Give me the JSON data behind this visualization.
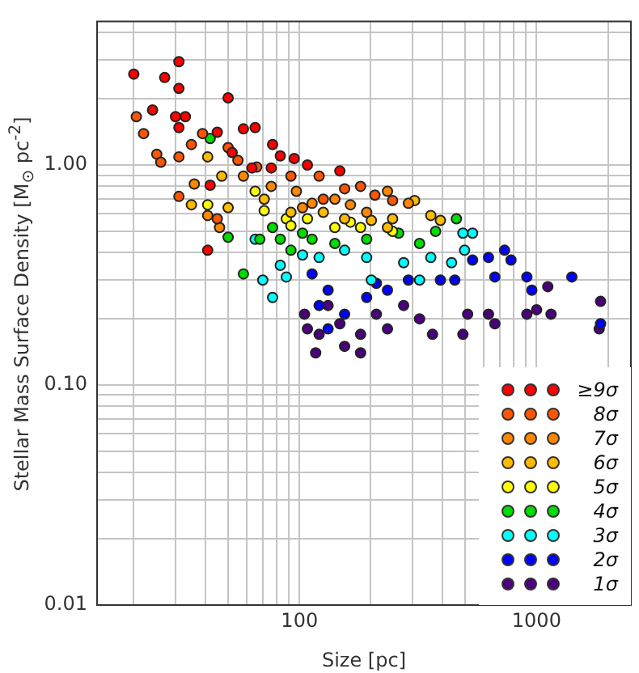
{
  "chart_data": {
    "type": "scatter",
    "xlabel": "Size [pc]",
    "ylabel": "Stellar Mass Surface Density [M$_{⊙}$ pc$^{-2}$]",
    "log": "xy",
    "grid": true,
    "legend": "bottom right",
    "marker": "circle",
    "xlim": [
      14,
      2500
    ],
    "ylim": [
      0.01,
      4.5
    ],
    "xticks": [
      {
        "value": 20,
        "label": null
      },
      {
        "value": 30,
        "label": null
      },
      {
        "value": 40,
        "label": null
      },
      {
        "value": 50,
        "label": null
      },
      {
        "value": 60,
        "label": null
      },
      {
        "value": 70,
        "label": null
      },
      {
        "value": 80,
        "label": null
      },
      {
        "value": 90,
        "label": null
      },
      100,
      {
        "value": 200,
        "label": null
      },
      {
        "value": 300,
        "label": null
      },
      {
        "value": 400,
        "label": null
      },
      {
        "value": 500,
        "label": null
      },
      {
        "value": 600,
        "label": null
      },
      {
        "value": 700,
        "label": null
      },
      {
        "value": 800,
        "label": null
      },
      {
        "value": 900,
        "label": null
      },
      1000,
      {
        "value": 2000,
        "label": null
      }
    ],
    "yticks": [
      0.01,
      {
        "value": 0.02,
        "label": null
      },
      {
        "value": 0.03,
        "label": null
      },
      {
        "value": 0.04,
        "label": null
      },
      {
        "value": 0.05,
        "label": null
      },
      {
        "value": 0.06,
        "label": null
      },
      {
        "value": 0.07,
        "label": null
      },
      {
        "value": 0.08,
        "label": null
      },
      {
        "value": 0.09,
        "label": null
      },
      {
        "value": 0.1,
        "label": "0.10"
      },
      {
        "value": 0.2,
        "label": null
      },
      {
        "value": 0.3,
        "label": null
      },
      {
        "value": 0.4,
        "label": null
      },
      {
        "value": 0.5,
        "label": null
      },
      {
        "value": 0.6,
        "label": null
      },
      {
        "value": 0.7,
        "label": null
      },
      {
        "value": 0.8,
        "label": null
      },
      {
        "value": 0.9,
        "label": null
      },
      {
        "value": 1,
        "label": "1.00"
      },
      {
        "value": 2,
        "label": null
      },
      {
        "value": 3,
        "label": null
      },
      {
        "value": 4,
        "label": null
      }
    ],
    "series": [
      {
        "name": "≥9σ",
        "color": "#ff0000",
        "x": [
          31,
          20,
          27,
          31,
          50,
          24,
          30,
          33,
          31,
          58,
          65,
          45,
          77,
          52,
          83,
          95,
          108,
          148,
          41,
          63,
          42,
          76
        ],
        "values": [
          2.95,
          2.59,
          2.5,
          2.23,
          2.02,
          1.78,
          1.66,
          1.66,
          1.48,
          1.46,
          1.48,
          1.41,
          1.24,
          1.14,
          1.1,
          1.07,
          1.0,
          0.94,
          0.41,
          0.97,
          0.81,
          0.97
        ]
      },
      {
        "name": "8σ",
        "color": "#ff5500",
        "x": [
          20.5,
          22,
          25,
          26,
          31,
          35,
          39,
          50,
          55,
          66,
          92,
          121,
          155,
          181,
          208,
          247,
          45,
          31,
          126
        ],
        "values": [
          1.66,
          1.39,
          1.12,
          1.03,
          1.09,
          1.24,
          1.39,
          1.2,
          1.05,
          0.98,
          0.89,
          0.89,
          0.78,
          0.8,
          0.73,
          0.69,
          0.57,
          0.72,
          0.7
        ]
      },
      {
        "name": "7σ",
        "color": "#ff8800",
        "x": [
          36,
          58,
          76,
          97,
          141,
          164,
          235,
          288,
          46,
          41,
          103,
          113,
          192
        ],
        "values": [
          0.82,
          0.89,
          0.8,
          0.76,
          0.7,
          0.66,
          0.76,
          0.67,
          0.52,
          0.59,
          0.64,
          0.67,
          0.61
        ]
      },
      {
        "name": "6σ",
        "color": "#ffbb00",
        "x": [
          41,
          47,
          35,
          71,
          92,
          126,
          155,
          201,
          235,
          306,
          358,
          393,
          247,
          50
        ],
        "values": [
          1.09,
          0.89,
          0.66,
          0.7,
          0.61,
          0.61,
          0.57,
          0.56,
          0.52,
          0.69,
          0.59,
          0.56,
          0.57,
          0.64
        ]
      },
      {
        "name": "5σ",
        "color": "#ffff00",
        "x": [
          41,
          71,
          88,
          108,
          141,
          181,
          247,
          164,
          92,
          65
        ],
        "values": [
          0.66,
          0.62,
          0.57,
          0.57,
          0.52,
          0.52,
          0.5,
          0.55,
          0.53,
          0.76
        ]
      },
      {
        "name": "4σ",
        "color": "#00dd00",
        "x": [
          50,
          42,
          58,
          68,
          92,
          113,
          141,
          192,
          262,
          321,
          375,
          459,
          103,
          77,
          83
        ],
        "values": [
          0.47,
          1.32,
          0.32,
          0.46,
          0.41,
          0.46,
          0.44,
          0.46,
          0.49,
          0.44,
          0.5,
          0.57,
          0.49,
          0.52,
          0.46
        ]
      },
      {
        "name": "3σ",
        "color": "#00ffff",
        "x": [
          77,
          70,
          88,
          65,
          103,
          121,
          155,
          192,
          275,
          358,
          438,
          489,
          537,
          497,
          201,
          321,
          83
        ],
        "values": [
          0.25,
          0.3,
          0.31,
          0.46,
          0.39,
          0.38,
          0.41,
          0.38,
          0.36,
          0.38,
          0.36,
          0.49,
          0.49,
          0.41,
          0.3,
          0.3,
          0.35
        ]
      },
      {
        "name": "2σ",
        "color": "#0000ff",
        "x": [
          113,
          132,
          155,
          121,
          192,
          235,
          288,
          393,
          452,
          537,
          627,
          733,
          780,
          667,
          910,
          955,
          1409,
          1862,
          211,
          132
        ],
        "values": [
          0.32,
          0.27,
          0.21,
          0.23,
          0.25,
          0.27,
          0.3,
          0.3,
          0.3,
          0.37,
          0.38,
          0.41,
          0.37,
          0.31,
          0.31,
          0.27,
          0.31,
          0.19,
          0.29,
          0.18
        ]
      },
      {
        "name": "1σ",
        "color": "#4b0080",
        "x": [
          105,
          121,
          117,
          148,
          181,
          155,
          181,
          211,
          235,
          275,
          321,
          364,
          489,
          512,
          627,
          667,
          910,
          1000,
          1151,
          1837,
          1862,
          1115,
          132,
          108
        ],
        "values": [
          0.21,
          0.17,
          0.14,
          0.19,
          0.17,
          0.15,
          0.14,
          0.21,
          0.18,
          0.23,
          0.2,
          0.17,
          0.17,
          0.21,
          0.21,
          0.19,
          0.21,
          0.22,
          0.21,
          0.18,
          0.24,
          0.28,
          0.23,
          0.18
        ]
      }
    ]
  }
}
